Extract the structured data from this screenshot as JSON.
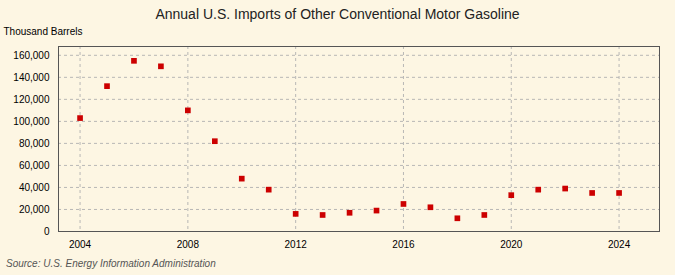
{
  "chart_data": {
    "type": "scatter",
    "title": "Annual U.S. Imports of Other Conventional Motor Gasoline",
    "ylabel": "Thousand Barrels",
    "annotation": "Source: U.S. Energy Information Administration",
    "x": [
      2004,
      2005,
      2006,
      2007,
      2008,
      2009,
      2010,
      2011,
      2012,
      2013,
      2014,
      2015,
      2016,
      2017,
      2018,
      2019,
      2020,
      2021,
      2022,
      2023,
      2024
    ],
    "values": [
      103000,
      132000,
      155000,
      150000,
      110000,
      82000,
      48000,
      38000,
      16000,
      15000,
      17000,
      19000,
      25000,
      22000,
      12000,
      15000,
      33000,
      38000,
      39000,
      35000,
      35000
    ],
    "color": "#cc0000",
    "marker": "square",
    "xlim": [
      2003.2,
      2025.5
    ],
    "xticks": [
      2004,
      2008,
      2012,
      2016,
      2020,
      2024
    ],
    "ylim": [
      0,
      168000
    ],
    "yticks": [
      0,
      {
        "value": 20000,
        "label": "20,000"
      },
      {
        "value": 40000,
        "label": "40,000"
      },
      {
        "value": 60000,
        "label": "60,000"
      },
      {
        "value": 80000,
        "label": "80,000"
      },
      {
        "value": 100000,
        "label": "100,000"
      },
      {
        "value": 120000,
        "label": "120,000"
      },
      {
        "value": 140000,
        "label": "140,000"
      },
      {
        "value": 160000,
        "label": "160,000"
      }
    ],
    "grid": true
  }
}
